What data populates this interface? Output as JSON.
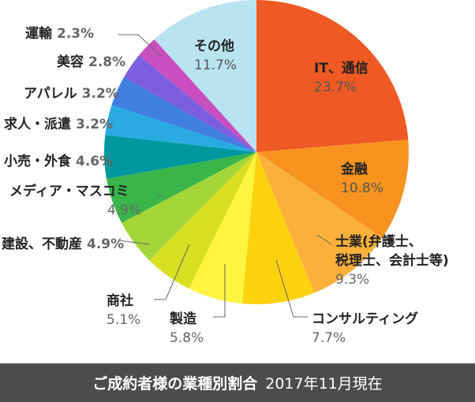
{
  "chart_data": {
    "type": "pie",
    "slices": [
      {
        "label": "IT、通信",
        "pct_text": "23.7%",
        "value": 23.7,
        "color": "#ef5a24"
      },
      {
        "label": "金融",
        "pct_text": "10.8%",
        "value": 10.8,
        "color": "#f7931e"
      },
      {
        "label": "士業(弁護士、\n税理士、会計士等)",
        "pct_text": "9.3%",
        "value": 9.3,
        "color": "#fbb03b"
      },
      {
        "label": "コンサルティング",
        "pct_text": "7.7%",
        "value": 7.7,
        "color": "#fcd20f"
      },
      {
        "label": "製造",
        "pct_text": "5.8%",
        "value": 5.8,
        "color": "#fff43f"
      },
      {
        "label": "商社",
        "pct_text": "5.1%",
        "value": 5.1,
        "color": "#d9e021"
      },
      {
        "label": "建設、不動産",
        "pct_text": "4.9%",
        "value": 4.9,
        "color": "#a4d63a"
      },
      {
        "label": "メディア・マスコミ",
        "pct_text": "4.9%",
        "value": 4.9,
        "color": "#39b54a"
      },
      {
        "label": "小売・外食",
        "pct_text": "4.6%",
        "value": 4.6,
        "color": "#00989f"
      },
      {
        "label": "求人・派遣",
        "pct_text": "3.2%",
        "value": 3.2,
        "color": "#29abe2"
      },
      {
        "label": "アパレル",
        "pct_text": "3.2%",
        "value": 3.2,
        "color": "#3f7fe0"
      },
      {
        "label": "美容",
        "pct_text": "2.8%",
        "value": 2.8,
        "color": "#7b5fe0"
      },
      {
        "label": "運輸",
        "pct_text": "2.3%",
        "value": 2.3,
        "color": "#c94ec0"
      },
      {
        "label": "その他",
        "pct_text": "11.7%",
        "value": 11.7,
        "color": "#b9e3f1"
      }
    ]
  },
  "footer": {
    "title": "ご成約者様の業種別割合",
    "note": "2017年11月現在"
  }
}
